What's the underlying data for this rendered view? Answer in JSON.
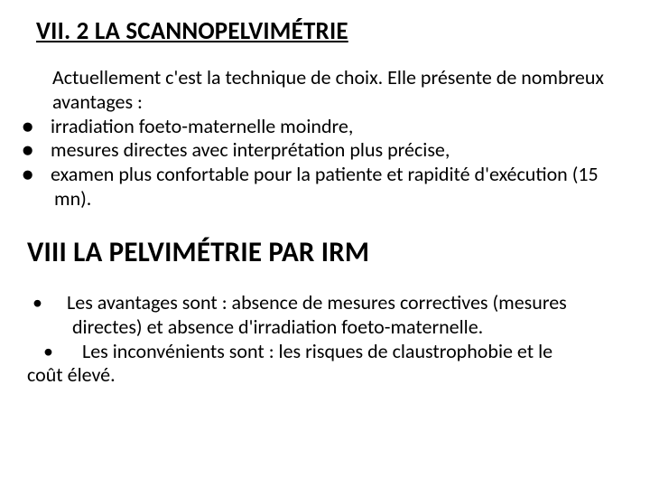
{
  "colors": {
    "background": "#ffffff",
    "text": "#000000"
  },
  "typography": {
    "heading1_fontsize_pt": 20,
    "heading2_fontsize_pt": 23,
    "body_fontsize_pt": 16,
    "font_family": "Calibri, Arial, sans-serif",
    "heading_weight": "700",
    "body_weight": "400"
  },
  "heading1": "VII. 2 LA SCANNOPELVIMÉTRIE",
  "intro": "Actuellement c'est la technique de choix. Elle présente de nombreux avantages :",
  "section1_bullet_glyph": "●",
  "section1_bullets": [
    "irradiation foeto-maternelle moindre,",
    "mesures directes avec interprétation plus précise,",
    "examen plus confortable pour la patiente et rapidité d'exécution (15 mn)."
  ],
  "heading2": "VIII LA PELVIMÉTRIE PAR IRM",
  "section2_bullet_glyph": "•",
  "section2_items": {
    "a": "Les avantages sont : absence de mesures correctives (mesures directes) et absence d'irradiation foeto-maternelle.",
    "b": " Les inconvénients sont : les risques de claustrophobie et le",
    "c": "coût élevé."
  }
}
